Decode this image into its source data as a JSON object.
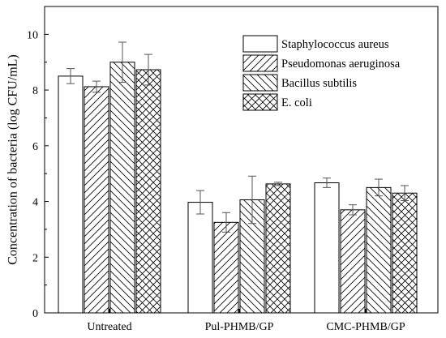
{
  "chart_data": {
    "type": "bar",
    "title": "",
    "xlabel": "",
    "ylabel": "Concentration of bacteria (log CFU/mL)",
    "ylim": [
      0,
      11
    ],
    "yticks": [
      0,
      2,
      4,
      6,
      8,
      10
    ],
    "categories": [
      "Untreated",
      "Pul-PHMB/GP",
      "CMC-PHMB/GP"
    ],
    "series": [
      {
        "name": "Staphylococcus aureus",
        "pattern": "blank",
        "values": [
          8.5,
          3.97,
          4.67
        ],
        "errors": [
          0.27,
          0.42,
          0.17
        ]
      },
      {
        "name": "Pseudomonas aeruginosa",
        "pattern": "hatch-forward",
        "values": [
          8.12,
          3.25,
          3.7
        ],
        "errors": [
          0.2,
          0.35,
          0.18
        ]
      },
      {
        "name": "Bacillus subtilis",
        "pattern": "hatch-back",
        "values": [
          9.0,
          4.06,
          4.5
        ],
        "errors": [
          0.72,
          0.85,
          0.3
        ]
      },
      {
        "name": "E. coli",
        "pattern": "crosshatch",
        "values": [
          8.73,
          4.63,
          4.3
        ],
        "errors": [
          0.55,
          0.06,
          0.27
        ]
      }
    ],
    "legend_position": "top-right",
    "grid": false
  },
  "colors": {
    "axis": "#000000",
    "bar_fill": "#ffffff",
    "bar_stroke": "#000000",
    "errorbar": "#555555"
  }
}
